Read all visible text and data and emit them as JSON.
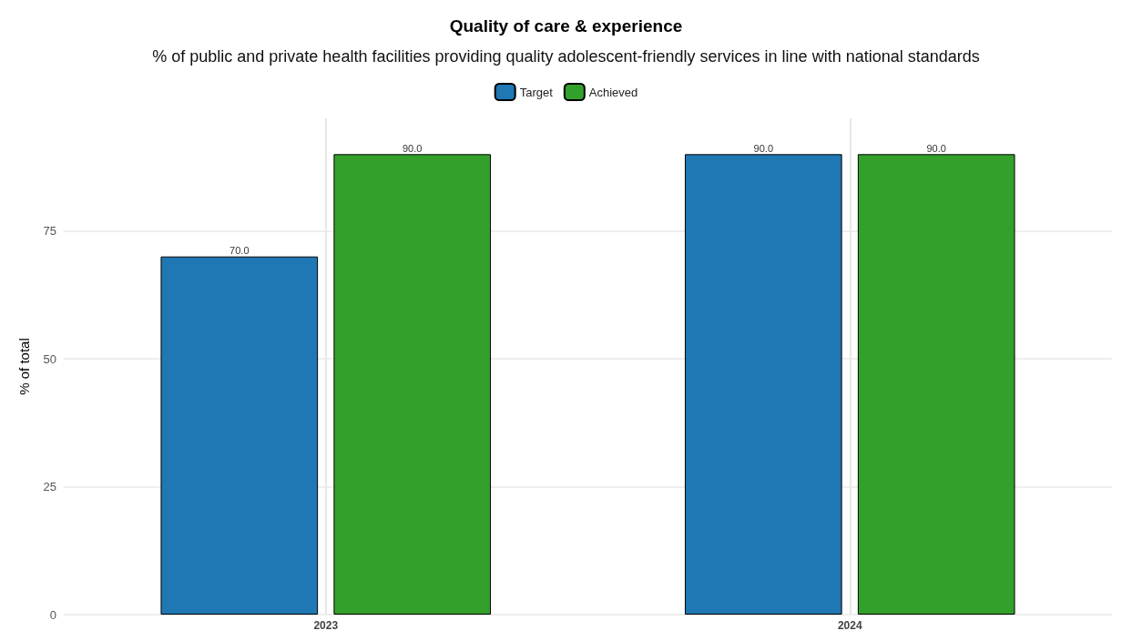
{
  "chart_data": {
    "type": "bar",
    "title": "Quality of care & experience",
    "subtitle": "% of public and private health facilities providing quality adolescent-friendly services in line with national standards",
    "ylabel": "% of total",
    "categories": [
      "2023",
      "2024"
    ],
    "series": [
      {
        "name": "Target",
        "color": "#1f77b4",
        "values": [
          70,
          90
        ],
        "value_labels": [
          "70.0",
          "90.0"
        ]
      },
      {
        "name": "Achieved",
        "color": "#33a02c",
        "values": [
          90,
          90
        ],
        "value_labels": [
          "90.0",
          "90.0"
        ]
      }
    ],
    "ylim": [
      0,
      97
    ],
    "yticks": [
      0,
      25,
      50,
      75
    ],
    "grid": true,
    "legend": "top"
  }
}
